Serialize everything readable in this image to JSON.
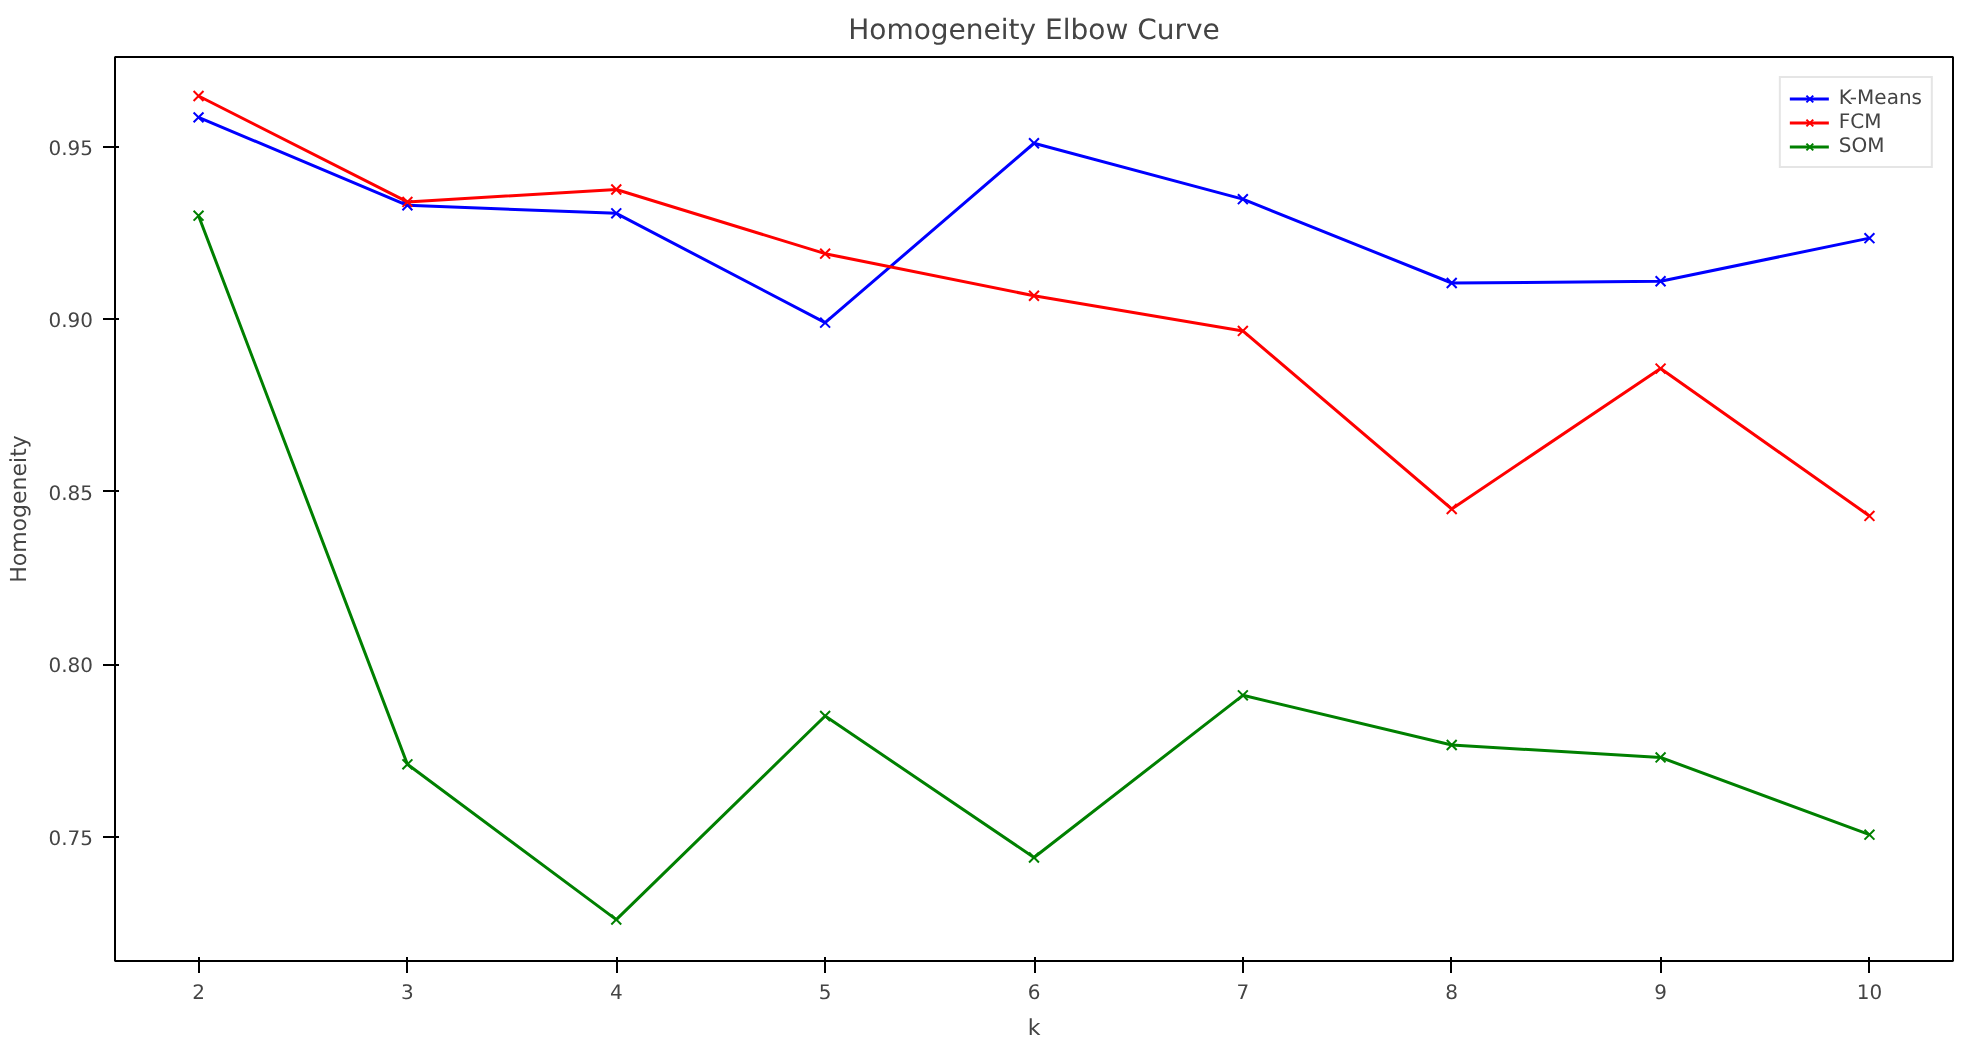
{
  "chart_data": {
    "type": "line",
    "title": "Homogeneity Elbow Curve",
    "xlabel": "k",
    "ylabel": "Homogeneity",
    "x": [
      2,
      3,
      4,
      5,
      6,
      7,
      8,
      9,
      10
    ],
    "series": [
      {
        "name": "K-Means",
        "color": "#0000ff",
        "values": [
          0.9585,
          0.933,
          0.9307,
          0.899,
          0.951,
          0.9348,
          0.9105,
          0.911,
          0.9235
        ]
      },
      {
        "name": "FCM",
        "color": "#ff0000",
        "values": [
          0.9647,
          0.934,
          0.9376,
          0.919,
          0.9068,
          0.8966,
          0.845,
          0.8857,
          0.843
        ]
      },
      {
        "name": "SOM",
        "color": "#008000",
        "values": [
          0.93,
          0.771,
          0.726,
          0.785,
          0.744,
          0.791,
          0.7766,
          0.773,
          0.7506
        ]
      }
    ],
    "xlim": [
      1.6,
      10.4
    ],
    "ylim": [
      0.714,
      0.976
    ],
    "xticks": [
      2,
      3,
      4,
      5,
      6,
      7,
      8,
      9,
      10
    ],
    "yticks": [
      {
        "value": 0.75,
        "label": "0.75"
      },
      {
        "value": 0.8,
        "label": "0.80"
      },
      {
        "value": 0.85,
        "label": "0.85"
      },
      {
        "value": 0.9,
        "label": "0.90"
      },
      {
        "value": 0.95,
        "label": "0.95"
      }
    ],
    "marker": "cross",
    "legend": "top right",
    "grid": false
  }
}
